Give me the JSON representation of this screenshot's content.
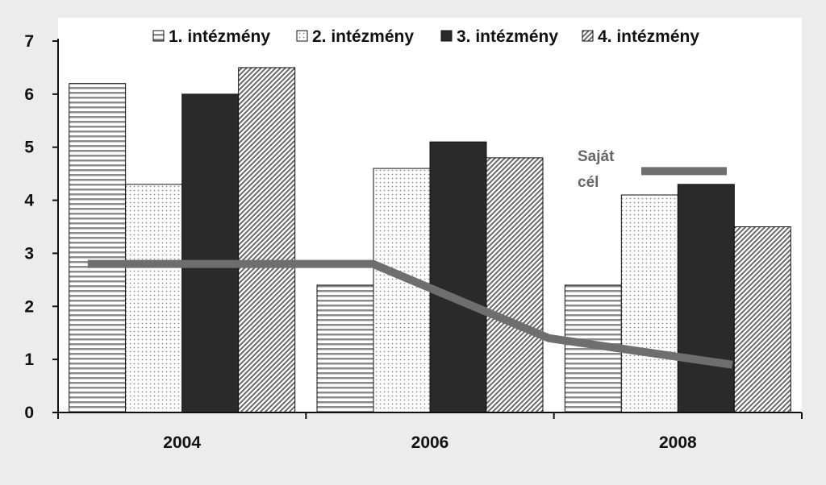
{
  "chart_data": {
    "type": "bar",
    "categories": [
      "2004",
      "2006",
      "2008"
    ],
    "series": [
      {
        "name": "1. intézmény",
        "values": [
          6.2,
          2.4,
          2.4
        ],
        "pattern": "hstripe"
      },
      {
        "name": "2. intézmény",
        "values": [
          4.3,
          4.6,
          4.1
        ],
        "pattern": "dots"
      },
      {
        "name": "3. intézmény",
        "values": [
          6.0,
          5.1,
          4.3
        ],
        "pattern": "solid"
      },
      {
        "name": "4. intézmény",
        "values": [
          6.5,
          4.8,
          3.5
        ],
        "pattern": "diag"
      }
    ],
    "line": {
      "points": [
        {
          "x": "2004",
          "y": 2.8
        },
        {
          "x": "2006",
          "y": 2.8
        },
        {
          "x": "2008",
          "y": 1.4
        },
        {
          "x": "2008",
          "y": 0.9
        }
      ]
    },
    "annotation": {
      "lines": [
        "Saját",
        "cél"
      ],
      "marker_y": 4.55
    },
    "yticks": [
      "0",
      "1",
      "2",
      "3",
      "4",
      "5",
      "6",
      "7"
    ],
    "ylim": [
      0,
      7
    ],
    "legend_position": "top",
    "grid": false,
    "colors": {
      "background": "#ececec",
      "plot_background": "#ffffff",
      "bar_dark": "#2a2a2a",
      "pattern_stroke": "#777777",
      "line": "#6e6e6e",
      "axis": "#111111"
    }
  }
}
